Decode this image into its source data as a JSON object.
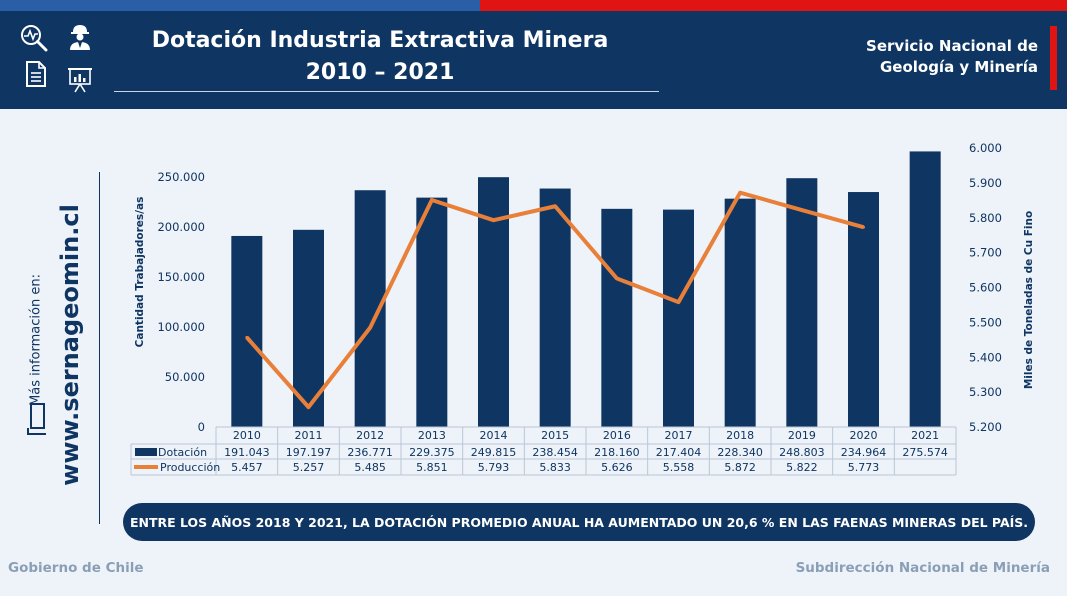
{
  "header": {
    "title_line1": "Dotación Industria Extractiva Minera",
    "title_line2": "2010 – 2021",
    "org_line1": "Servicio Nacional de",
    "org_line2": "Geología y Minería"
  },
  "icons": [
    "search-analytics-icon",
    "worker-icon",
    "document-icon",
    "presentation-chart-icon",
    "laptop-icon"
  ],
  "sidebar": {
    "more_info": "Más información en:",
    "website": "www.sernageomin.cl"
  },
  "chart_data": {
    "type": "bar+line",
    "categories": [
      "2010",
      "2011",
      "2012",
      "2013",
      "2014",
      "2015",
      "2016",
      "2017",
      "2018",
      "2019",
      "2020",
      "2021"
    ],
    "series": [
      {
        "name": "Dotación",
        "type": "bar",
        "axis": "left",
        "color": "#0f3562",
        "values": [
          191043,
          197197,
          236771,
          229375,
          249815,
          238454,
          218160,
          217404,
          228340,
          248803,
          234964,
          275574
        ],
        "labels": [
          "191.043",
          "197.197",
          "236.771",
          "229.375",
          "249.815",
          "238.454",
          "218.160",
          "217.404",
          "228.340",
          "248.803",
          "234.964",
          "275.574"
        ]
      },
      {
        "name": "Producción",
        "type": "line",
        "axis": "right",
        "color": "#e8803a",
        "values": [
          5457,
          5257,
          5485,
          5851,
          5793,
          5833,
          5626,
          5558,
          5872,
          5822,
          5773,
          null
        ],
        "labels": [
          "5.457",
          "5.257",
          "5.485",
          "5.851",
          "5.793",
          "5.833",
          "5.626",
          "5.558",
          "5.872",
          "5.822",
          "5.773",
          ""
        ]
      }
    ],
    "ylabel_left": "Cantidad Trabajadores/as",
    "ylabel_right": "Miles de Toneladas de Cu Fino",
    "ylim_left": [
      0,
      279000
    ],
    "ylim_right": [
      5200,
      6000
    ],
    "yticks_left": [
      0,
      50000,
      100000,
      150000,
      200000,
      250000
    ],
    "yticks_left_labels": [
      "0",
      "50.000",
      "100.000",
      "150.000",
      "200.000",
      "250.000"
    ],
    "yticks_right": [
      5200,
      5300,
      5400,
      5500,
      5600,
      5700,
      5800,
      5900,
      6000
    ],
    "yticks_right_labels": [
      "5.200",
      "5.300",
      "5.400",
      "5.500",
      "5.600",
      "5.700",
      "5.800",
      "5.900",
      "6.000"
    ],
    "data_table": true
  },
  "banner": "ENTRE LOS AÑOS 2018 Y 2021, LA DOTACIÓN PROMEDIO ANUAL HA AUMENTADO UN 20,6 % EN LAS FAENAS MINERAS DEL PAÍS.",
  "footer": {
    "left": "Gobierno de Chile",
    "right": "Subdirección Nacional de Minería"
  },
  "colors": {
    "navy": "#0f3562",
    "orange": "#e8803a",
    "red": "#e11414",
    "background": "#eef3f9"
  }
}
